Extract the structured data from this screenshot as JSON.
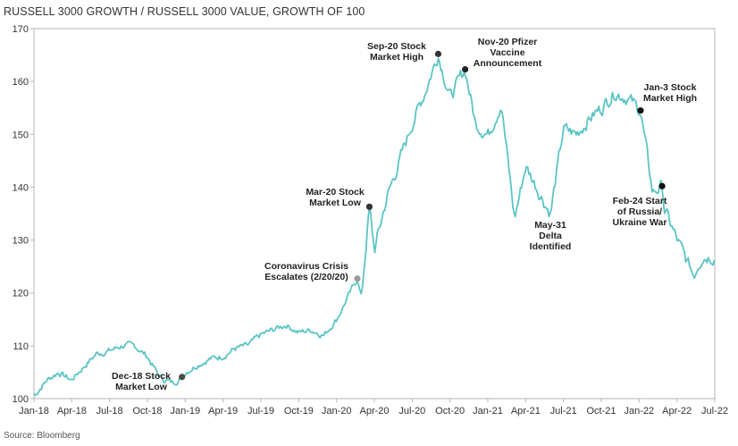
{
  "title": "RUSSELL 3000 GROWTH / RUSSELL 3000 VALUE, GROWTH OF 100",
  "source": "Source: Bloomberg",
  "chart_data": {
    "type": "line",
    "title": "RUSSELL 3000 GROWTH / RUSSELL 3000 VALUE, GROWTH OF 100",
    "xlabel": "",
    "ylabel": "",
    "ylim": [
      100,
      170
    ],
    "yticks": [
      100,
      110,
      120,
      130,
      140,
      150,
      160,
      170
    ],
    "xlim": [
      "2018-01-01",
      "2022-07-01"
    ],
    "xtick_labels": [
      "Jan-18",
      "Apr-18",
      "Jul-18",
      "Oct-18",
      "Jan-19",
      "Apr-19",
      "Jul-19",
      "Oct-19",
      "Jan-20",
      "Apr-20",
      "Jul-20",
      "Oct-20",
      "Jan-21",
      "Apr-21",
      "Jul-21",
      "Oct-21",
      "Jan-22",
      "Apr-22",
      "Jul-22"
    ],
    "grid": false,
    "line_color": "#5bc4c4",
    "series": [
      {
        "x": [
          "2018-01-01",
          "2018-02-01",
          "2018-03-01",
          "2018-04-01",
          "2018-05-01",
          "2018-06-01",
          "2018-07-01",
          "2018-08-01",
          "2018-09-01",
          "2018-10-01",
          "2018-11-01",
          "2018-12-01",
          "2018-12-24",
          "2019-01-01",
          "2019-02-01",
          "2019-03-01",
          "2019-04-01",
          "2019-05-01",
          "2019-06-01",
          "2019-07-01",
          "2019-08-01",
          "2019-09-01",
          "2019-10-01",
          "2019-11-01",
          "2019-12-01",
          "2020-01-01",
          "2020-02-20",
          "2020-03-01",
          "2020-03-20",
          "2020-04-01",
          "2020-05-01",
          "2020-06-01",
          "2020-07-01",
          "2020-08-01",
          "2020-09-02",
          "2020-10-01",
          "2020-11-06",
          "2020-12-01",
          "2021-01-01",
          "2021-02-01",
          "2021-03-05",
          "2021-04-01",
          "2021-05-31",
          "2021-07-01",
          "2021-08-01",
          "2021-09-01",
          "2021-10-01",
          "2021-11-01",
          "2021-12-01",
          "2022-01-03",
          "2022-02-01",
          "2022-02-24",
          "2022-03-01",
          "2022-04-01",
          "2022-05-12",
          "2022-06-01",
          "2022-07-01"
        ],
        "values": [
          100.5,
          103.5,
          105,
          103.5,
          106,
          108.5,
          109,
          110,
          110,
          108,
          104,
          103,
          104,
          105,
          106.5,
          107.5,
          108,
          109.5,
          110,
          112,
          113,
          114,
          112.5,
          113,
          112,
          115,
          122.7,
          119,
          136.3,
          128,
          138,
          145,
          152,
          158,
          165.2,
          157,
          162.3,
          152,
          150,
          156,
          134,
          144,
          135,
          151,
          150,
          153,
          155,
          158,
          157,
          154.5,
          139,
          140.2,
          136,
          130,
          123,
          127,
          127
        ]
      }
    ],
    "annotations": [
      {
        "text": [
          "Dec-18 Stock",
          "Market Low"
        ],
        "x": "2018-12-24",
        "y": 104.1,
        "dot_color": "#4a4a4a"
      },
      {
        "text": [
          "Coronavirus Crisis",
          "Escalates (2/20/20)"
        ],
        "x": "2020-02-20",
        "y": 122.7,
        "dot_color": "#9a9a9a"
      },
      {
        "text": [
          "Mar-20 Stock",
          "Market Low"
        ],
        "x": "2020-03-20",
        "y": 136.3,
        "dot_color": "#333333"
      },
      {
        "text": [
          "Sep-20 Stock",
          "Market High"
        ],
        "x": "2020-09-02",
        "y": 165.2,
        "dot_color": "#333333"
      },
      {
        "text": [
          "Nov-20 Pfizer",
          "Vaccine",
          "Announcement"
        ],
        "x": "2020-11-06",
        "y": 162.3,
        "dot_color": "#222222"
      },
      {
        "text": [
          "May-31",
          "Delta",
          "Identified"
        ],
        "x": "2021-05-31",
        "y": 135
      },
      {
        "text": [
          "Jan-3 Stock",
          "Market High"
        ],
        "x": "2022-01-03",
        "y": 154.5,
        "dot_color": "#111111"
      },
      {
        "text": [
          "Feb-24 Start",
          "of Russia/",
          "Ukraine War"
        ],
        "x": "2022-02-24",
        "y": 140.2,
        "dot_color": "#111111"
      }
    ]
  }
}
